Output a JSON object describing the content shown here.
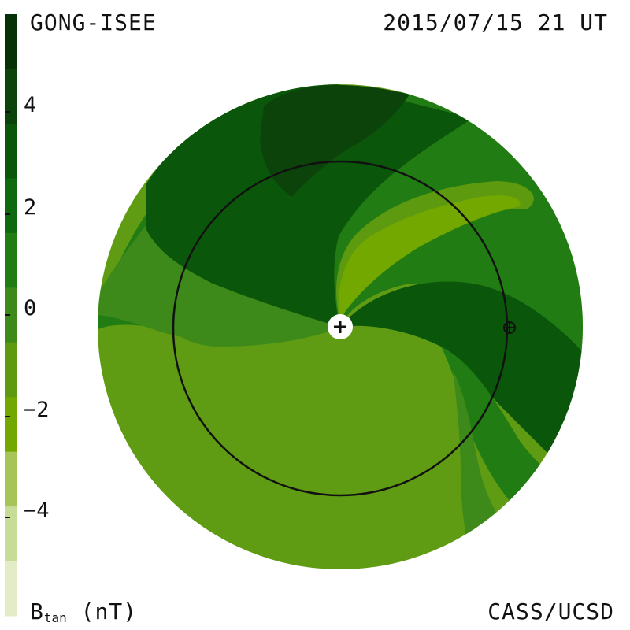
{
  "header": {
    "left_label": "GONG-ISEE",
    "right_label": "2015/07/15 21 UT"
  },
  "footer": {
    "quantity_main": "B",
    "quantity_sub": "tan",
    "unit": "(nT)",
    "credit": "CASS/UCSD"
  },
  "colorbar": {
    "ticks": [
      "4",
      "2",
      "0",
      "−2",
      "−4"
    ],
    "tick_values": [
      4,
      2,
      0,
      -2,
      -4
    ],
    "colors_high_to_low": [
      "#063006",
      "#0b430b",
      "#0a560a",
      "#0f690f",
      "#217c13",
      "#3d8a1a",
      "#5d9a10",
      "#73a800",
      "#a6c458",
      "#c7dc97",
      "#e3ecc6"
    ],
    "range": [
      -6,
      6
    ]
  },
  "map": {
    "background_color": "#5f9b13",
    "markers": [
      {
        "name": "sun",
        "symbol": "+"
      },
      {
        "name": "earth",
        "symbol": "⊕"
      }
    ]
  }
}
